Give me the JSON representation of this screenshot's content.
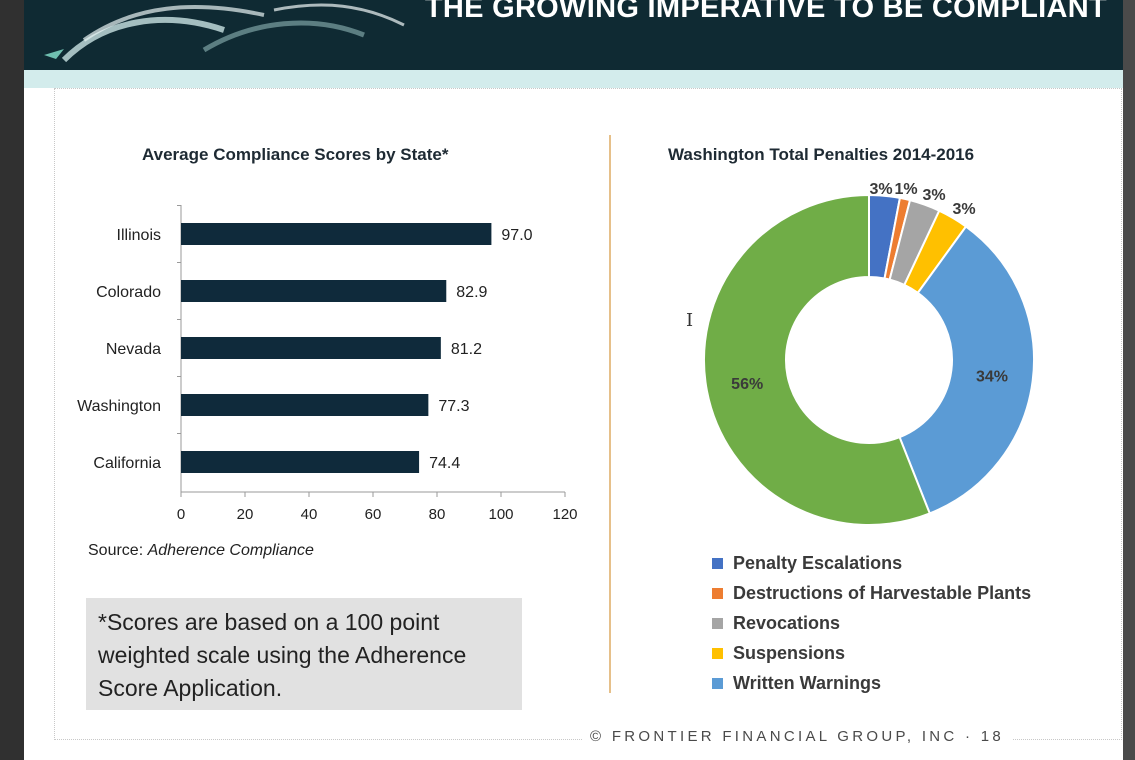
{
  "header": {
    "title": "THE GROWING IMPERATIVE TO BE COMPLIANT"
  },
  "footer": {
    "text": "© FRONTIER FINANCIAL GROUP, INC  ·  18"
  },
  "left_panel": {
    "source_prefix": "Source: ",
    "source_name": "Adherence Compliance",
    "note": "*Scores are based on a 100 point weighted scale using the Adherence Score Application."
  },
  "colors": {
    "bar": "#0f2a3b",
    "header": "#0f2a33",
    "divider": "#e6c08a"
  },
  "chart_data": [
    {
      "type": "bar",
      "orientation": "horizontal",
      "title": "Average Compliance Scores by State*",
      "categories": [
        "Illinois",
        "Colorado",
        "Nevada",
        "Washington",
        "California"
      ],
      "values": [
        97.0,
        82.9,
        81.2,
        77.3,
        74.4
      ],
      "value_labels": [
        "97.0",
        "82.9",
        "81.2",
        "77.3",
        "74.4"
      ],
      "xlim": [
        0,
        120
      ],
      "xticks": [
        0,
        20,
        40,
        60,
        80,
        100,
        120
      ],
      "grid": false
    },
    {
      "type": "pie",
      "donut": true,
      "title": "Washington Total Penalties 2014-2016",
      "slices": [
        {
          "label": "Penalty Escalations",
          "value": 3,
          "display": "3%",
          "color": "#4472c4"
        },
        {
          "label": "Destructions of Harvestable Plants",
          "value": 1,
          "display": "1%",
          "color": "#ed7d31"
        },
        {
          "label": "Revocations",
          "value": 3,
          "display": "3%",
          "color": "#a5a5a5"
        },
        {
          "label": "Suspensions",
          "value": 3,
          "display": "3%",
          "color": "#ffc000"
        },
        {
          "label": "Written Warnings",
          "value": 34,
          "display": "34%",
          "color": "#5b9bd5"
        },
        {
          "label": "",
          "value": 56,
          "display": "56%",
          "color": "#70ad47"
        }
      ],
      "legend_position": "bottom"
    }
  ]
}
